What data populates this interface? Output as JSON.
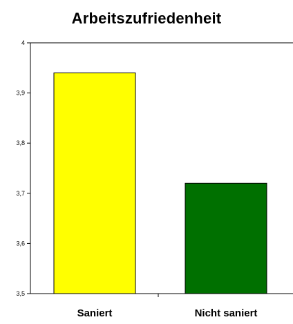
{
  "chart_data": {
    "type": "bar",
    "title": "Arbeitszufriedenheit",
    "categories": [
      "Saniert",
      "Nicht saniert"
    ],
    "values": [
      3.94,
      3.72
    ],
    "colors": [
      "#ffff00",
      "#007000"
    ],
    "ylim": [
      3.5,
      4
    ],
    "yticks": [
      3.5,
      3.6,
      3.7,
      3.8,
      3.9,
      4
    ],
    "ytick_labels": [
      "3,5",
      "3,6",
      "3,7",
      "3,8",
      "3,9",
      "4"
    ],
    "xlabel": "",
    "ylabel": "",
    "grid": false,
    "legend": false
  }
}
